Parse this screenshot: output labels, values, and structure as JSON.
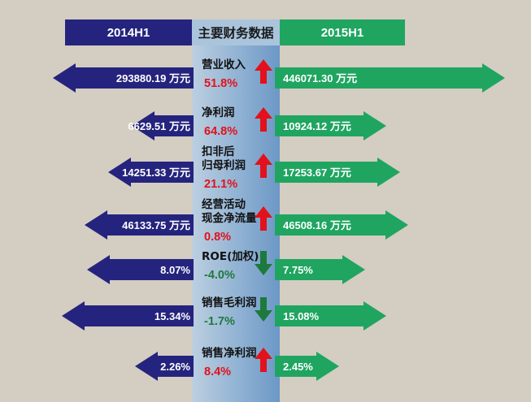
{
  "header": {
    "left": "2014H1",
    "center": "主要财务数据",
    "right": "2015H1"
  },
  "colors": {
    "left_arrow": "#24247e",
    "right_arrow": "#1fa560",
    "up": "#e3111b",
    "down": "#1d7a3c",
    "background": "#d4cdc2"
  },
  "chart_data": {
    "type": "bar",
    "categories": [
      "营业收入",
      "净利润",
      "扣非后归母利润",
      "经营活动现金净流量",
      "ROE(加权)",
      "销售毛利润",
      "销售净利润"
    ],
    "series": [
      {
        "name": "2014H1",
        "values": [
          293880.19,
          6629.51,
          14251.33,
          46133.75,
          8.07,
          15.34,
          2.26
        ]
      },
      {
        "name": "2015H1",
        "values": [
          446071.3,
          10924.12,
          17253.67,
          46508.16,
          7.75,
          15.08,
          2.45
        ]
      }
    ],
    "rows": [
      {
        "label": [
          "营业收入"
        ],
        "left": "293880.19 万元",
        "right": "446071.30 万元",
        "change": "51.8%",
        "direction": "up",
        "change_value": 51.8
      },
      {
        "label": [
          "净利润"
        ],
        "left": "6629.51 万元",
        "right": "10924.12 万元",
        "change": "64.8%",
        "direction": "up",
        "change_value": 64.8
      },
      {
        "label": [
          "扣非后",
          "归母利润"
        ],
        "left": "14251.33 万元",
        "right": "17253.67 万元",
        "change": "21.1%",
        "direction": "up",
        "change_value": 21.1
      },
      {
        "label": [
          "经营活动",
          "现金净流量"
        ],
        "left": "46133.75 万元",
        "right": "46508.16 万元",
        "change": "0.8%",
        "direction": "up",
        "change_value": 0.8
      },
      {
        "label": [
          "ROE(加权)"
        ],
        "left": "8.07%",
        "right": "7.75%",
        "change": "-4.0%",
        "direction": "down",
        "change_value": -4.0
      },
      {
        "label": [
          "销售毛利润"
        ],
        "left": "15.34%",
        "right": "15.08%",
        "change": "-1.7%",
        "direction": "down",
        "change_value": -1.7
      },
      {
        "label": [
          "销售净利润"
        ],
        "left": "2.26%",
        "right": "2.45%",
        "change": "8.4%",
        "direction": "up",
        "change_value": 8.4
      }
    ]
  }
}
